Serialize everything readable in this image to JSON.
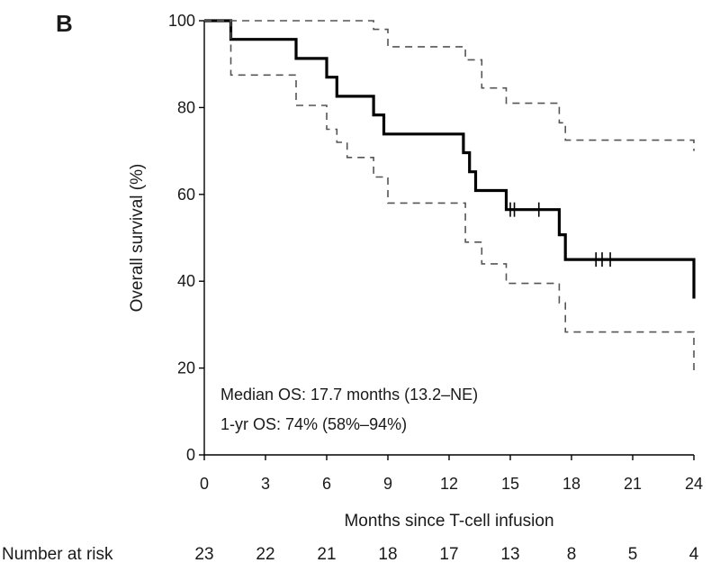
{
  "chart_data": {
    "type": "line",
    "panel_label": "B",
    "xlabel": "Months since T-cell infusion",
    "ylabel": "Overall survival (%)",
    "xlim": [
      0,
      24
    ],
    "ylim": [
      0,
      100
    ],
    "x_ticks": [
      0,
      3,
      6,
      9,
      12,
      15,
      18,
      21,
      24
    ],
    "y_ticks": [
      0,
      20,
      40,
      60,
      80,
      100
    ],
    "grid": false,
    "annotations": [
      "Median OS: 17.7 months (13.2–NE)",
      "1-yr OS: 74% (58%–94%)"
    ],
    "risk_table": {
      "label": "Number at risk",
      "x": [
        0,
        3,
        6,
        9,
        12,
        15,
        18,
        21,
        24
      ],
      "values": [
        "23",
        "22",
        "21",
        "18",
        "17",
        "13",
        "8",
        "5",
        "4"
      ]
    },
    "series": [
      {
        "name": "Overall survival",
        "style": "solid",
        "color": "#000000",
        "x": [
          0,
          1.3,
          1.3,
          4.5,
          4.5,
          6.0,
          6.0,
          6.5,
          6.5,
          7.0,
          7.0,
          8.3,
          8.3,
          8.8,
          8.8,
          12.7,
          12.7,
          13.0,
          13.0,
          13.3,
          13.3,
          13.6,
          13.6,
          14.8,
          14.8,
          17.4,
          17.4,
          17.7,
          17.7,
          24,
          24
        ],
        "y": [
          100,
          100,
          95.7,
          95.7,
          91.3,
          91.3,
          87,
          87,
          82.6,
          82.6,
          82.6,
          82.6,
          78.3,
          78.3,
          73.9,
          73.9,
          69.6,
          69.6,
          65.2,
          65.2,
          60.9,
          60.9,
          60.9,
          60.9,
          56.5,
          56.5,
          50.7,
          50.7,
          45,
          45,
          36
        ]
      },
      {
        "name": "Upper 95% CI",
        "style": "dashed",
        "color": "#555555",
        "x": [
          0,
          8.3,
          8.3,
          9.0,
          9.0,
          12.8,
          12.8,
          13.6,
          13.6,
          14.8,
          14.8,
          17.4,
          17.4,
          17.7,
          17.7,
          24,
          24
        ],
        "y": [
          100,
          100,
          98,
          98,
          94,
          94,
          91,
          91,
          84.5,
          84.5,
          81,
          81,
          76.5,
          76.5,
          72.5,
          72.5,
          70
        ]
      },
      {
        "name": "Lower 95% CI",
        "style": "dashed",
        "color": "#555555",
        "x": [
          0,
          1.3,
          1.3,
          4.5,
          4.5,
          6.0,
          6.0,
          6.5,
          6.5,
          7.0,
          7.0,
          8.3,
          8.3,
          9.0,
          9.0,
          12.8,
          12.8,
          13.6,
          13.6,
          14.8,
          14.8,
          17.4,
          17.4,
          17.7,
          17.7,
          24,
          24
        ],
        "y": [
          100,
          100,
          87.5,
          87.5,
          80.5,
          80.5,
          75,
          75,
          72,
          72,
          68.5,
          68.5,
          64,
          64,
          58,
          58,
          49,
          49,
          44,
          44,
          39.5,
          39.5,
          35,
          35,
          28.3,
          28.3,
          19
        ]
      }
    ],
    "censor_marks": {
      "x": [
        15.0,
        15.2,
        16.4,
        19.2,
        19.5,
        19.9
      ],
      "y": [
        56.5,
        56.5,
        56.5,
        45,
        45,
        45
      ]
    }
  }
}
